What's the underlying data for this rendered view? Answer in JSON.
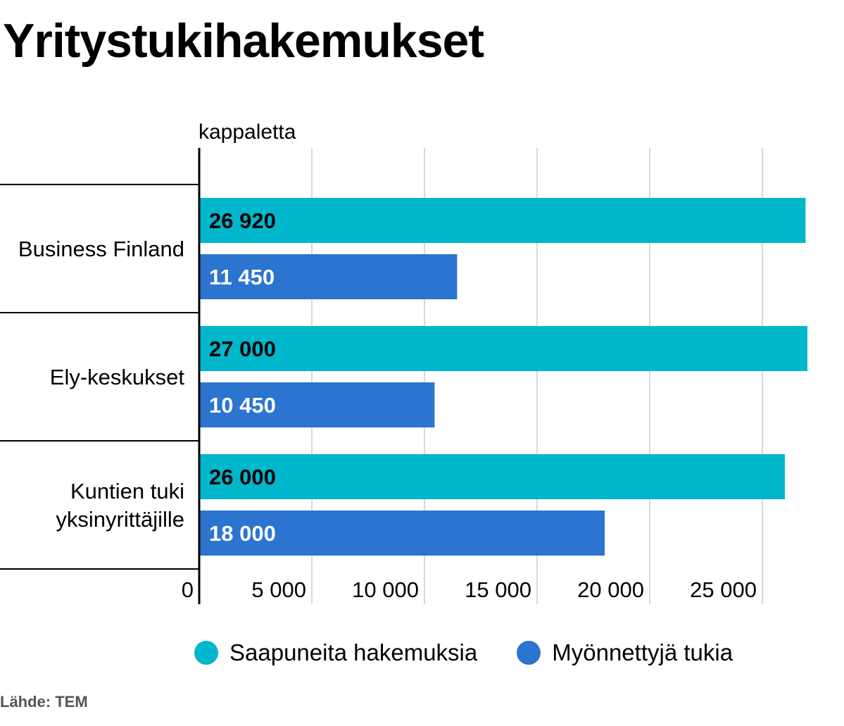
{
  "title": "Yritystukihakemukset",
  "source": "Lähde: TEM",
  "colors": {
    "applications": "#00b7cc",
    "granted": "#2b74d0",
    "grid": "#d9d9d9",
    "axis": "#000000"
  },
  "chart_data": {
    "type": "bar",
    "orientation": "horizontal",
    "unit_label": "kappaletta",
    "categories": [
      [
        "Business Finland"
      ],
      [
        "Ely-keskukset"
      ],
      [
        "Kuntien tuki",
        "yksinyrittäjille"
      ]
    ],
    "series": [
      {
        "name": "Saapuneita hakemuksia",
        "values": [
          26920,
          27000,
          26000
        ],
        "labels": [
          "26 920",
          "27 000",
          "26 000"
        ]
      },
      {
        "name": "Myönnettyjä tukia",
        "values": [
          11450,
          10450,
          18000
        ],
        "labels": [
          "11 450",
          "10 450",
          "18 000"
        ]
      }
    ],
    "xlim": [
      0,
      27000
    ],
    "x_ticks": [
      0,
      5000,
      10000,
      15000,
      20000,
      25000
    ],
    "x_tick_labels": [
      "0",
      "5 000",
      "10 000",
      "15 000",
      "20 000",
      "25 000"
    ],
    "grid": true,
    "legend_position": "bottom"
  }
}
